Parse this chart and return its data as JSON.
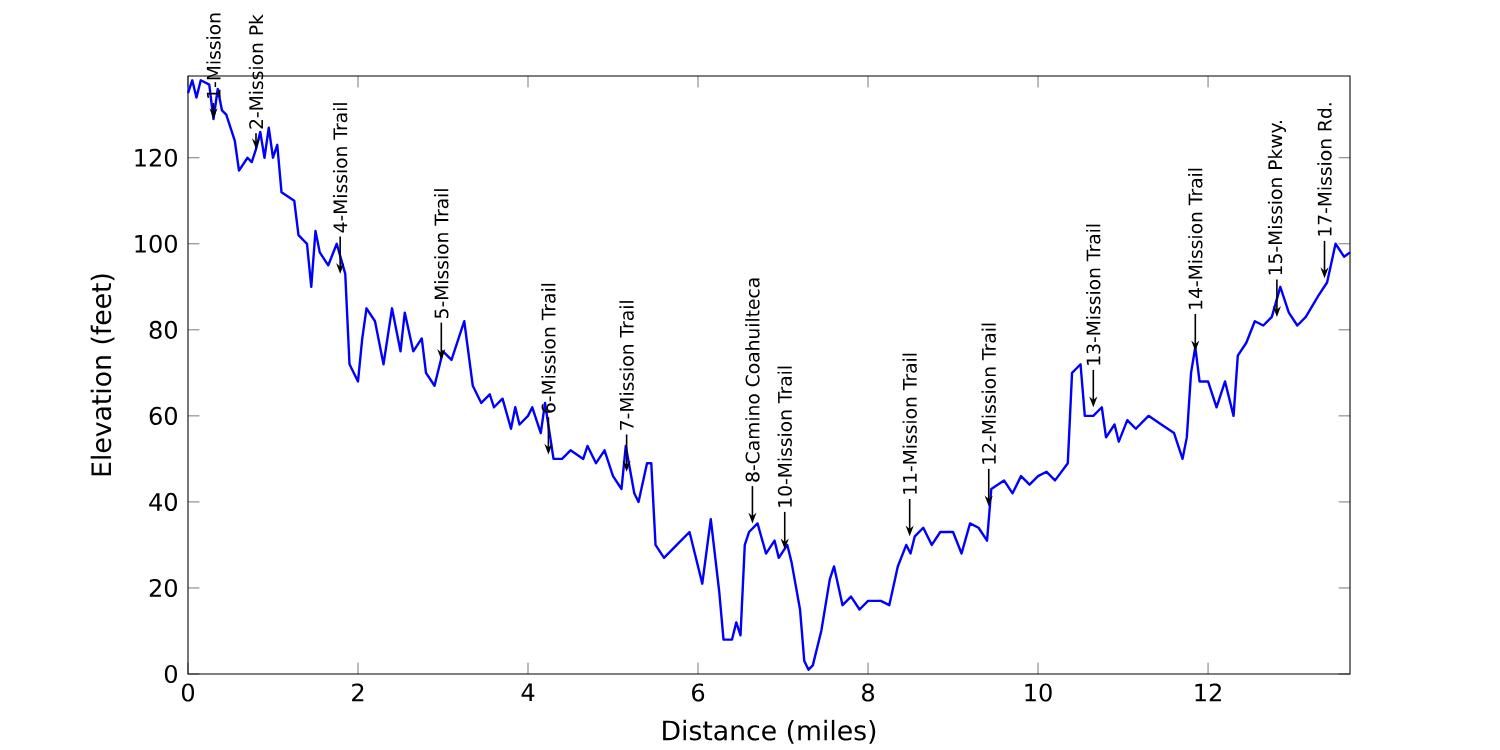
{
  "chart_data": {
    "type": "line",
    "xlabel": "Distance (miles)",
    "ylabel": "Elevation (feet)",
    "xlim": [
      0,
      13.67
    ],
    "ylim": [
      0,
      139
    ],
    "xticks": [
      0,
      2,
      4,
      6,
      8,
      10,
      12
    ],
    "yticks": [
      0,
      20,
      40,
      60,
      80,
      100,
      120
    ],
    "grid": false,
    "marker": "none",
    "line_style": "solid",
    "series": [
      {
        "color": "#0000ff",
        "x": [
          0.0,
          0.05,
          0.1,
          0.15,
          0.25,
          0.3,
          0.35,
          0.4,
          0.45,
          0.55,
          0.6,
          0.7,
          0.75,
          0.8,
          0.85,
          0.9,
          0.95,
          1.0,
          1.05,
          1.1,
          1.25,
          1.3,
          1.4,
          1.45,
          1.5,
          1.55,
          1.65,
          1.75,
          1.85,
          1.9,
          2.0,
          2.05,
          2.1,
          2.2,
          2.3,
          2.4,
          2.5,
          2.55,
          2.65,
          2.75,
          2.8,
          2.9,
          3.0,
          3.1,
          3.25,
          3.35,
          3.45,
          3.55,
          3.6,
          3.7,
          3.8,
          3.85,
          3.9,
          4.0,
          4.05,
          4.15,
          4.2,
          4.3,
          4.4,
          4.5,
          4.65,
          4.7,
          4.8,
          4.9,
          5.0,
          5.1,
          5.15,
          5.25,
          5.3,
          5.4,
          5.45,
          5.5,
          5.6,
          5.75,
          5.9,
          5.95,
          6.05,
          6.15,
          6.25,
          6.3,
          6.4,
          6.45,
          6.5,
          6.55,
          6.6,
          6.7,
          6.8,
          6.9,
          6.95,
          7.05,
          7.1,
          7.2,
          7.25,
          7.3,
          7.35,
          7.45,
          7.55,
          7.6,
          7.7,
          7.8,
          7.9,
          8.0,
          8.15,
          8.25,
          8.35,
          8.45,
          8.5,
          8.55,
          8.65,
          8.75,
          8.85,
          9.0,
          9.1,
          9.2,
          9.3,
          9.4,
          9.45,
          9.6,
          9.7,
          9.8,
          9.9,
          10.0,
          10.1,
          10.2,
          10.35,
          10.4,
          10.5,
          10.55,
          10.65,
          10.75,
          10.8,
          10.9,
          10.95,
          11.05,
          11.15,
          11.3,
          11.45,
          11.6,
          11.7,
          11.75,
          11.8,
          11.85,
          11.9,
          12.0,
          12.1,
          12.2,
          12.3,
          12.35,
          12.45,
          12.55,
          12.65,
          12.75,
          12.85,
          12.95,
          13.05,
          13.15,
          13.3,
          13.4,
          13.5,
          13.6,
          13.67
        ],
        "values": [
          135,
          138,
          134,
          138,
          137,
          129,
          136,
          131,
          130,
          124,
          117,
          120,
          119,
          122,
          126,
          120,
          127,
          120,
          123,
          112,
          110,
          102,
          100,
          90,
          103,
          98,
          95,
          100,
          93,
          72,
          68,
          78,
          85,
          82,
          72,
          85,
          75,
          84,
          75,
          78,
          70,
          67,
          75,
          73,
          82,
          67,
          63,
          65,
          62,
          64,
          57,
          62,
          58,
          60,
          62,
          56,
          63,
          50,
          50,
          52,
          50,
          53,
          49,
          52,
          46,
          43,
          53,
          42,
          40,
          49,
          49,
          30,
          27,
          30,
          33,
          29,
          21,
          36,
          19,
          8,
          8,
          12,
          9,
          30,
          33,
          35,
          28,
          31,
          27,
          30,
          26,
          15,
          3,
          1,
          2,
          10,
          22,
          25,
          16,
          18,
          15,
          17,
          17,
          16,
          25,
          30,
          28,
          32,
          34,
          30,
          33,
          33,
          28,
          35,
          34,
          31,
          43,
          45,
          42,
          46,
          44,
          46,
          47,
          45,
          49,
          70,
          72,
          60,
          60,
          62,
          55,
          58,
          54,
          59,
          57,
          60,
          58,
          56,
          50,
          55,
          70,
          76,
          68,
          68,
          62,
          68,
          60,
          74,
          77,
          82,
          81,
          83,
          90,
          84,
          81,
          83,
          88,
          91,
          100,
          97,
          98
        ]
      }
    ],
    "annotations": [
      {
        "text": "1-Mission",
        "x": 0.3,
        "y": 129
      },
      {
        "text": "2-Mission Pk",
        "x": 0.8,
        "y": 122
      },
      {
        "text": "4-Mission Trail",
        "x": 1.79,
        "y": 93
      },
      {
        "text": "5-Mission Trail",
        "x": 2.98,
        "y": 73
      },
      {
        "text": "6-Mission Trail",
        "x": 4.24,
        "y": 51
      },
      {
        "text": "7-Mission Trail",
        "x": 5.16,
        "y": 47
      },
      {
        "text": "8-Camino Coahuilteca",
        "x": 6.64,
        "y": 35
      },
      {
        "text": "10-Mission Trail",
        "x": 7.02,
        "y": 29
      },
      {
        "text": "11-Mission Trail",
        "x": 8.49,
        "y": 32
      },
      {
        "text": "12-Mission Trail",
        "x": 9.42,
        "y": 39
      },
      {
        "text": "13-Mission Trail",
        "x": 10.65,
        "y": 62
      },
      {
        "text": "14-Mission Trail",
        "x": 11.85,
        "y": 75
      },
      {
        "text": "15-Mission Pkwy.",
        "x": 12.81,
        "y": 83
      },
      {
        "text": "17-Mission Rd.",
        "x": 13.37,
        "y": 92
      }
    ]
  }
}
